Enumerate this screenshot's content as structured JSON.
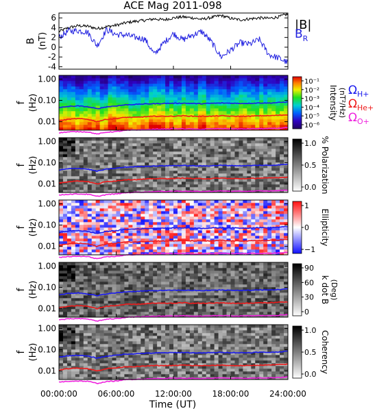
{
  "title": "ACE Mag 2011-098",
  "xlabel": "Time (UT)",
  "x_ticks": [
    "00:00:00",
    "06:00:00",
    "12:00:00",
    "18:00:00",
    "24:00:00"
  ],
  "colors": {
    "B": "#000000",
    "BR": "#2020e0",
    "H": "#1a1aee",
    "He": "#ee1a1a",
    "O": "#ee22dd"
  },
  "chart_data": [
    {
      "type": "line",
      "panel": "field",
      "ylabel": "B",
      "yunit": "(nT)",
      "ylim": [
        -4.5,
        7
      ],
      "y_ticks": [
        "-4",
        "-2",
        "0",
        "2",
        "4",
        "6"
      ],
      "x_hours": [
        0,
        1,
        2,
        3,
        4,
        5,
        6,
        7,
        8,
        9,
        10,
        11,
        12,
        13,
        14,
        15,
        16,
        17,
        18,
        19,
        20,
        21,
        22,
        23,
        24
      ],
      "series": [
        {
          "name": "|B|",
          "values": [
            3.2,
            4.0,
            4.4,
            4.3,
            3.8,
            4.2,
            4.5,
            5.0,
            5.3,
            5.5,
            5.8,
            5.6,
            6.0,
            6.2,
            6.0,
            5.7,
            6.1,
            6.5,
            5.9,
            5.6,
            5.8,
            6.0,
            5.9,
            6.2,
            6.8
          ]
        },
        {
          "name": "B_R",
          "values": [
            2.0,
            3.3,
            3.4,
            3.1,
            0.3,
            3.6,
            2.6,
            2.5,
            2.0,
            1.7,
            -1.5,
            0.9,
            2.8,
            1.5,
            2.5,
            3.2,
            1.0,
            -2.0,
            -0.6,
            0.9,
            0.6,
            1.6,
            -1.5,
            -2.2,
            -3.2
          ]
        }
      ]
    },
    {
      "type": "heatmap",
      "panel": "intensity",
      "ylabel": "f",
      "yunit": "(Hz)",
      "y_ticks": [
        "1.00",
        "0.10",
        "0.01"
      ],
      "colorbar_label": "Intensity",
      "colorbar_unit": "(nT²/Hz)",
      "colorbar_ticks": [
        "10⁻¹",
        "10⁻²",
        "10⁻³",
        "10⁻⁴",
        "10⁻⁵",
        "10⁻⁶"
      ]
    },
    {
      "type": "heatmap",
      "panel": "polarization",
      "ylabel": "f",
      "yunit": "(Hz)",
      "y_ticks": [
        "1.00",
        "0.10",
        "0.01"
      ],
      "colorbar_label": "% Polarization",
      "colorbar_ticks": [
        "1.0",
        "0.5",
        "0.0"
      ]
    },
    {
      "type": "heatmap",
      "panel": "ellipticity",
      "ylabel": "f",
      "yunit": "(Hz)",
      "y_ticks": [
        "1.00",
        "0.10",
        "0.01"
      ],
      "colorbar_label": "Ellipticity",
      "colorbar_ticks": [
        "1",
        "0",
        "−1"
      ]
    },
    {
      "type": "heatmap",
      "panel": "kdotb",
      "ylabel": "f",
      "yunit": "(Hz)",
      "y_ticks": [
        "1.00",
        "0.10",
        "0.01"
      ],
      "colorbar_label": "k dot B",
      "colorbar_unit": "(Deg)",
      "colorbar_ticks": [
        "90",
        "60",
        "30",
        "0"
      ]
    },
    {
      "type": "heatmap",
      "panel": "coherency",
      "ylabel": "f",
      "yunit": "(Hz)",
      "y_ticks": [
        "1.00",
        "0.10",
        "0.01"
      ],
      "colorbar_label": "Coherency",
      "colorbar_ticks": [
        "1.0",
        "0.5",
        "0.0"
      ]
    }
  ],
  "gyrofrequency_lines": {
    "names": [
      "Ω",
      "Ω",
      "Ω"
    ],
    "subscripts": [
      "H+",
      "He+",
      "O+"
    ],
    "x_hours": [
      0,
      1,
      2,
      3,
      4,
      5,
      6,
      7,
      8,
      9,
      10,
      11,
      12,
      13,
      14,
      15,
      16,
      17,
      18,
      19,
      20,
      21,
      22,
      23,
      24
    ],
    "H_hz": [
      0.045,
      0.052,
      0.055,
      0.05,
      0.04,
      0.05,
      0.055,
      0.062,
      0.065,
      0.068,
      0.07,
      0.072,
      0.073,
      0.074,
      0.072,
      0.07,
      0.073,
      0.075,
      0.074,
      0.072,
      0.073,
      0.076,
      0.075,
      0.079,
      0.085
    ],
    "He_hz": [
      0.011,
      0.013,
      0.014,
      0.013,
      0.01,
      0.013,
      0.014,
      0.016,
      0.016,
      0.017,
      0.018,
      0.018,
      0.018,
      0.019,
      0.018,
      0.018,
      0.018,
      0.019,
      0.018,
      0.018,
      0.018,
      0.019,
      0.019,
      0.02,
      0.021
    ],
    "O_hz": [
      0.003,
      0.0033,
      0.0034,
      0.0033,
      0.0026,
      0.0032,
      0.0034,
      0.0039,
      0.0041,
      0.0042,
      0.0044,
      0.0045,
      0.0046,
      0.0046,
      0.0045,
      0.0044,
      0.0046,
      0.0047,
      0.0046,
      0.0045,
      0.0046,
      0.0047,
      0.0047,
      0.0049,
      0.0053
    ]
  }
}
